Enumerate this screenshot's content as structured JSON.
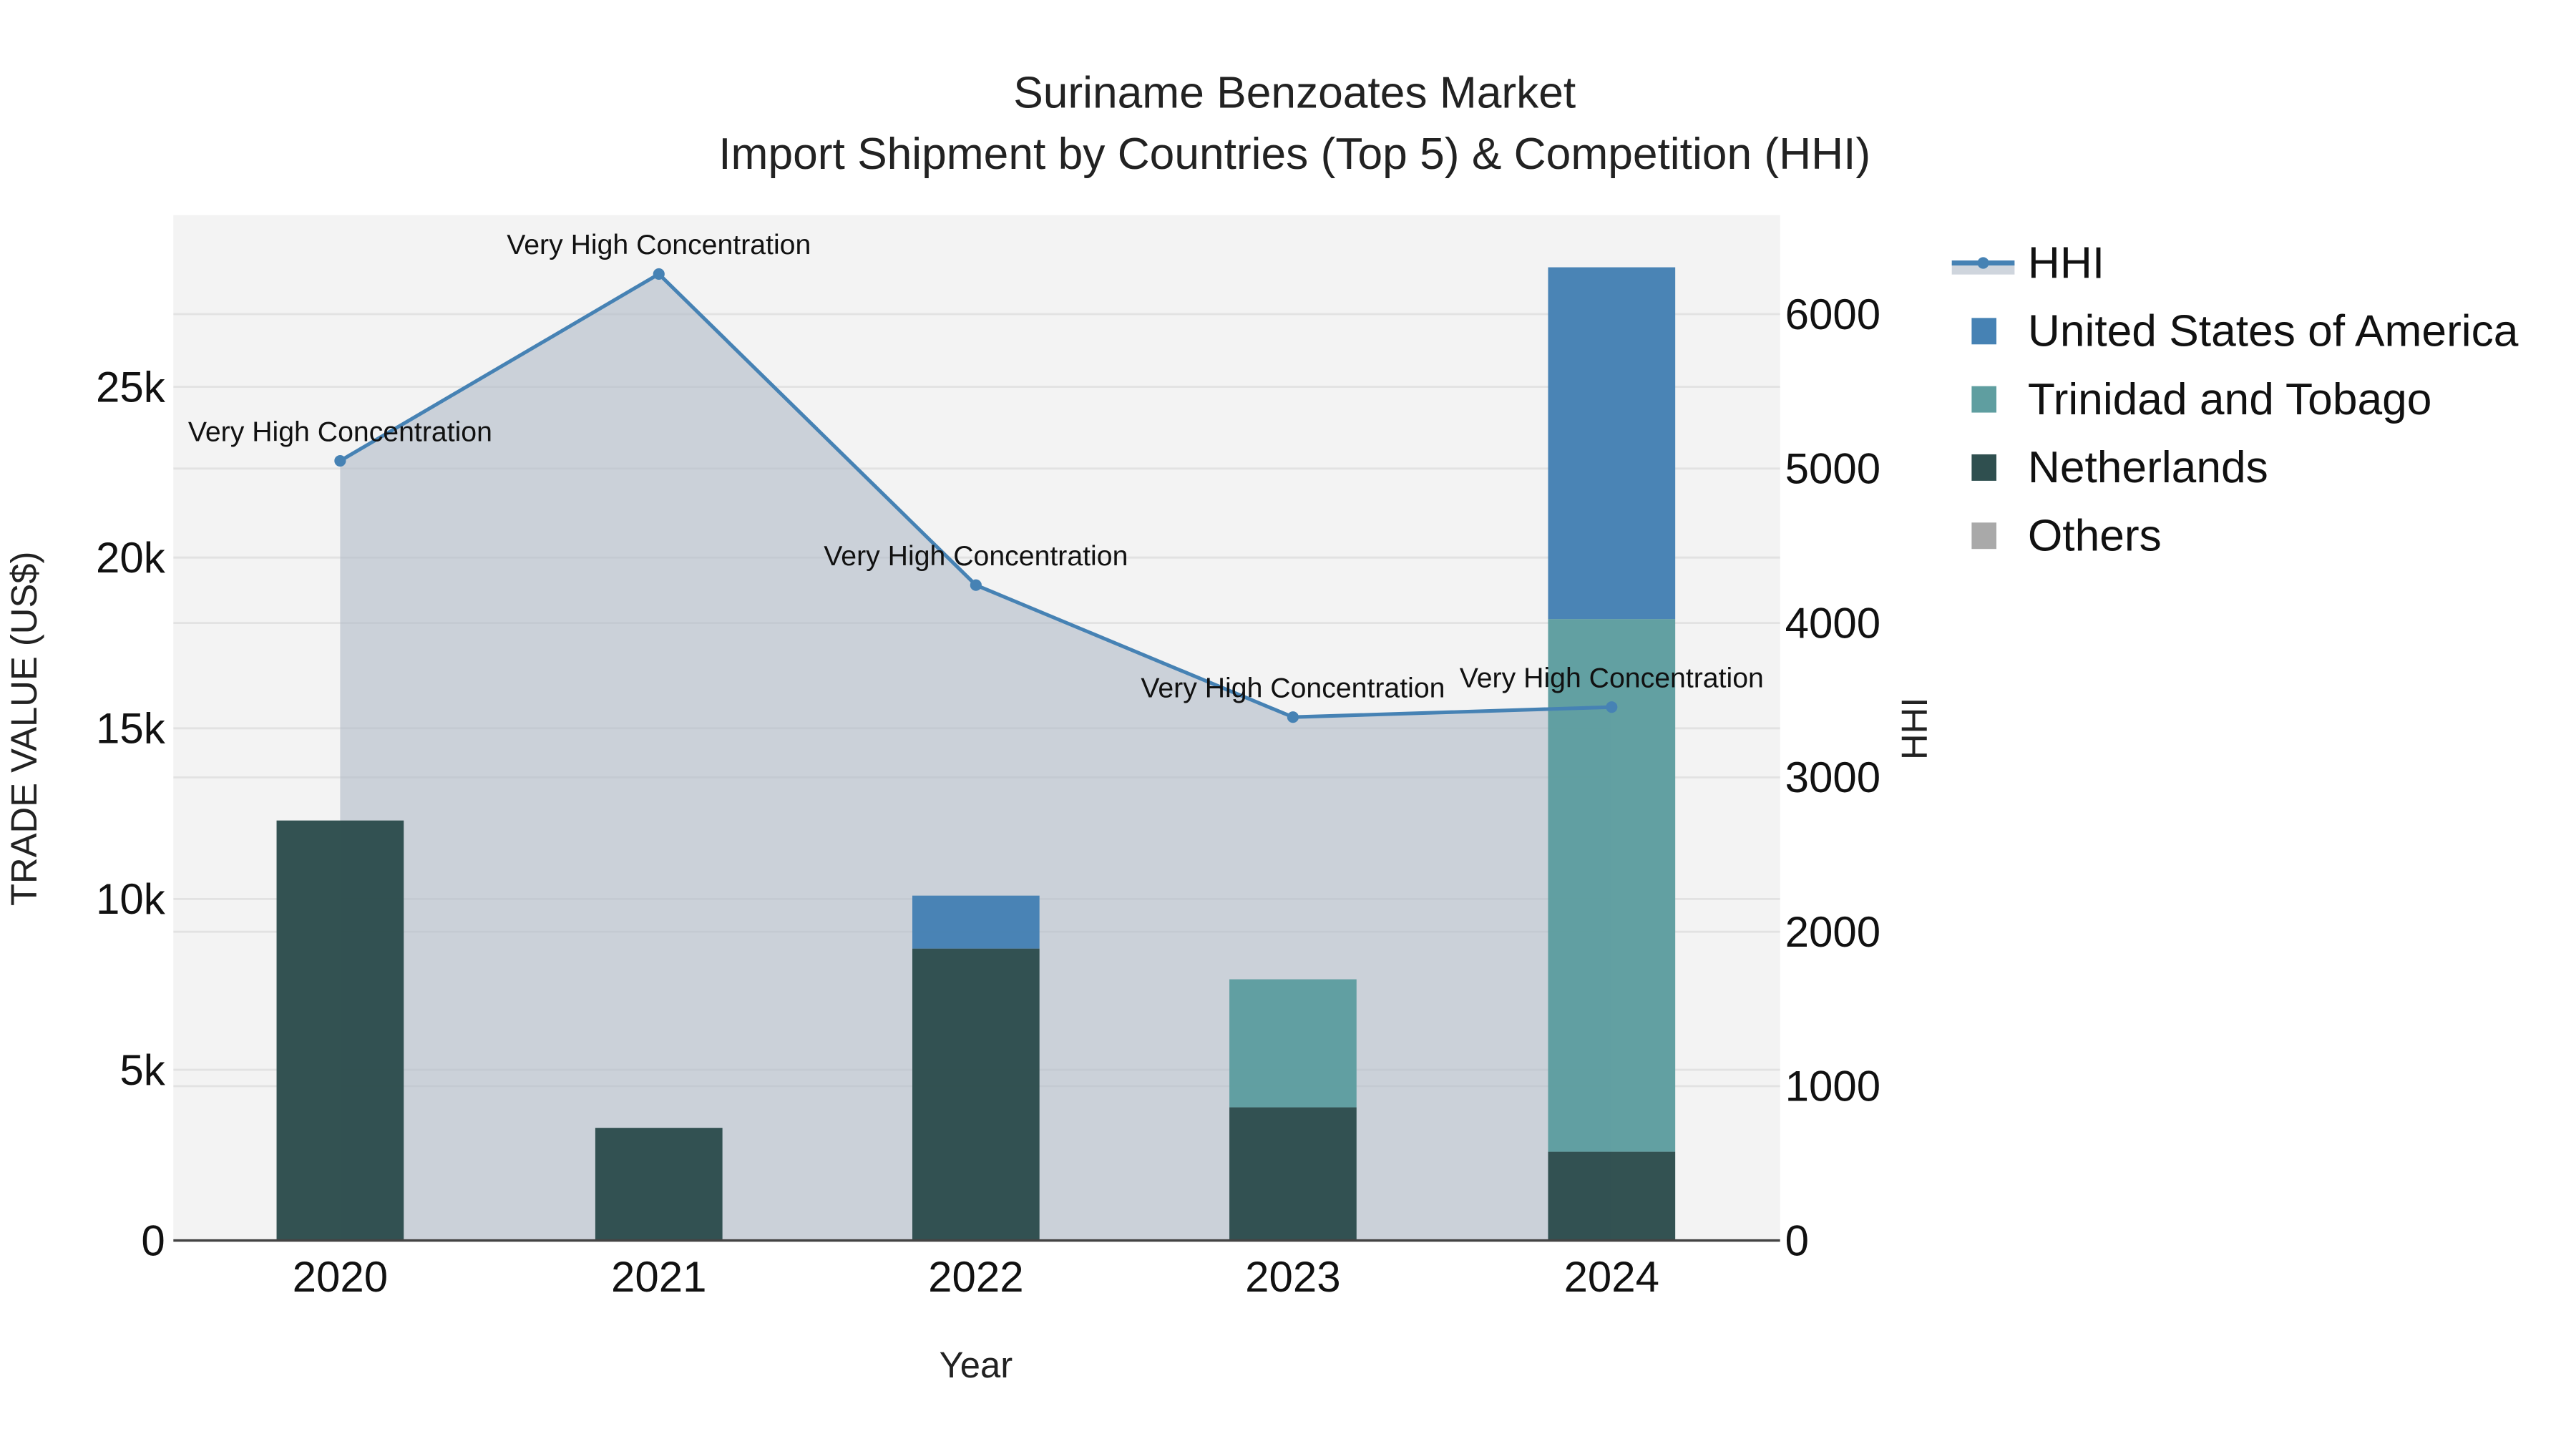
{
  "title": {
    "line1": "Suriname Benzoates Market",
    "line2": "Import Shipment by Countries (Top 5) & Competition (HHI)"
  },
  "axes": {
    "x_label": "Year",
    "y_left_label": "TRADE VALUE (US$)",
    "y_right_label": "HHI",
    "x_ticks": [
      "2020",
      "2021",
      "2022",
      "2023",
      "2024"
    ],
    "y_left_ticks": [
      "0",
      "5k",
      "10k",
      "15k",
      "20k",
      "25k"
    ],
    "y_right_ticks": [
      "0",
      "1000",
      "2000",
      "3000",
      "4000",
      "5000",
      "6000"
    ]
  },
  "legend": {
    "items": [
      {
        "label": "HHI",
        "color": "#4682B4",
        "type": "line"
      },
      {
        "label": "United States of America",
        "color": "#4682B4",
        "type": "square"
      },
      {
        "label": "Trinidad and Tobago",
        "color": "#5F9EA0",
        "type": "square"
      },
      {
        "label": "Netherlands",
        "color": "#2F4F4F",
        "type": "square"
      },
      {
        "label": "Others",
        "color": "#A9A9A9",
        "type": "square"
      }
    ]
  },
  "annotations": [
    "Very High Concentration",
    "Very High Concentration",
    "Very High Concentration",
    "Very High Concentration",
    "Very High Concentration"
  ],
  "chart_data": {
    "type": "bar",
    "title": "Suriname Benzoates Market - Import Shipment by Countries (Top 5) & Competition (HHI)",
    "xlabel": "Year",
    "ylabel": "TRADE VALUE (US$)",
    "y2label": "HHI",
    "categories": [
      "2020",
      "2021",
      "2022",
      "2023",
      "2024"
    ],
    "stacked": true,
    "ylim": [
      0,
      29500
    ],
    "y2lim": [
      0,
      6600
    ],
    "series": [
      {
        "name": "Netherlands",
        "color": "#2F4F4F",
        "values": [
          12300,
          3300,
          8550,
          3900,
          2600
        ]
      },
      {
        "name": "Trinidad and Tobago",
        "color": "#5F9EA0",
        "values": [
          0,
          0,
          0,
          3750,
          15600
        ]
      },
      {
        "name": "United States of America",
        "color": "#4682B4",
        "values": [
          0,
          0,
          1550,
          0,
          10300
        ]
      },
      {
        "name": "Others",
        "color": "#A9A9A9",
        "values": [
          0,
          0,
          0,
          0,
          0
        ]
      },
      {
        "name": "HHI",
        "type": "line+area",
        "axis": "right",
        "color": "#4682B4",
        "values": [
          5050,
          6260,
          4245,
          3390,
          3455
        ],
        "labels": [
          "Very High Concentration",
          "Very High Concentration",
          "Very High Concentration",
          "Very High Concentration",
          "Very High Concentration"
        ]
      }
    ],
    "grid": true,
    "legend_position": "right"
  }
}
